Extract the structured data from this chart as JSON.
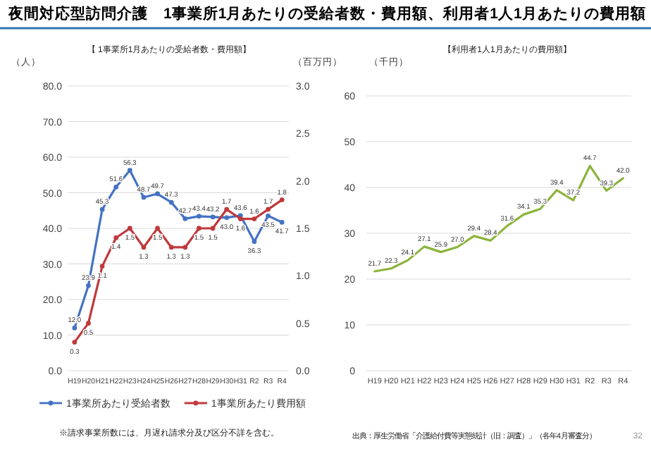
{
  "chart_data": [
    {
      "type": "line",
      "title": "夜間対応型訪問介護　1事業所1月あたりの受給者数・費用額、利用者1人1月あたりの費用額",
      "subtitle": "【 1事業所1月あたりの受給者数・費用額】",
      "ylabel": "（人）",
      "y2label": "（百万円）",
      "categories": [
        "H19",
        "H20",
        "H21",
        "H22",
        "H23",
        "H24",
        "H25",
        "H26",
        "H27",
        "H28",
        "H29",
        "H30",
        "H31",
        "R2",
        "R3",
        "R4"
      ],
      "series": [
        {
          "name": "1事業所あたり受給者数",
          "color": "#4472c4",
          "values": [
            12.0,
            23.9,
            45.3,
            51.6,
            56.3,
            48.7,
            49.7,
            47.3,
            42.7,
            43.4,
            43.2,
            43.0,
            43.6,
            36.3,
            43.5,
            41.7
          ],
          "value_labels": [
            "12.0",
            "23.9",
            "45.3",
            "51.6",
            "56.3",
            "48.7",
            "49.7",
            "47.3",
            "42.7",
            "43.4",
            "43.2",
            "43.0",
            "43.6",
            "36.3",
            "43.5",
            "41.7"
          ]
        },
        {
          "name": "1事業所あたり費用額",
          "color": "#c0393b",
          "axis": "y2",
          "values": [
            0.3,
            0.5,
            1.1,
            1.4,
            1.5,
            1.3,
            1.5,
            1.3,
            1.3,
            1.5,
            1.5,
            1.7,
            1.6,
            1.6,
            1.7,
            1.8
          ],
          "value_labels": [
            "0.3",
            "0.5",
            "1.1",
            "1.4",
            "1.5",
            "1.3",
            "1.5",
            "1.3",
            "1.3",
            "1.5",
            "1.5",
            "1.7",
            "1.6",
            "1.6",
            "1.7",
            "1.8"
          ]
        }
      ],
      "ylim": [
        0,
        80
      ],
      "yticks": [
        {
          "value": 0,
          "label": "0.0"
        },
        {
          "value": 10,
          "label": "10.0"
        },
        {
          "value": 20,
          "label": "20.0"
        },
        {
          "value": 30,
          "label": "30.0"
        },
        {
          "value": 40,
          "label": "40.0"
        },
        {
          "value": 50,
          "label": "50.0"
        },
        {
          "value": 60,
          "label": "60.0"
        },
        {
          "value": 70,
          "label": "70.0"
        },
        {
          "value": 80,
          "label": "80.0"
        }
      ],
      "y2lim": [
        0,
        3
      ],
      "y2ticks": [
        {
          "value": 0,
          "label": "0.0"
        },
        {
          "value": 0.5,
          "label": "0.5"
        },
        {
          "value": 1,
          "label": "1.0"
        },
        {
          "value": 1.5,
          "label": "1.5"
        },
        {
          "value": 2,
          "label": "2.0"
        },
        {
          "value": 2.5,
          "label": "2.5"
        },
        {
          "value": 3,
          "label": "3.0"
        }
      ],
      "grid": "y",
      "legend": "bottom",
      "marker": "circle",
      "annotations": [
        "※請求事業所数には、月遅れ請求分及び区分不詳を含む。"
      ]
    },
    {
      "type": "line",
      "title": "【利用者1人1月あたりの費用額】",
      "ylabel": "（千円）",
      "categories": [
        "H19",
        "H20",
        "H21",
        "H22",
        "H23",
        "H24",
        "H25",
        "H26",
        "H27",
        "H28",
        "H29",
        "H30",
        "H31",
        "R2",
        "R3",
        "R4"
      ],
      "series": [
        {
          "color": "#8cb43c",
          "values": [
            21.7,
            22.3,
            24.1,
            27.1,
            25.9,
            27.0,
            29.4,
            28.4,
            31.6,
            34.1,
            35.3,
            39.4,
            37.2,
            44.7,
            39.3,
            42.0
          ],
          "value_labels": [
            "21.7",
            "22.3",
            "24.1",
            "27.1",
            "25.9",
            "27.0",
            "29.4",
            "28.4",
            "31.6",
            "34.1",
            "35.3",
            "39.4",
            "37.2",
            "44.7",
            "39.3",
            "42.0"
          ]
        }
      ],
      "ylim": [
        0,
        60
      ],
      "yticks": [
        0,
        10,
        20,
        30,
        40,
        50,
        60
      ],
      "grid": "y",
      "annotations": [
        "出典：厚生労働省「介護給付費等実態統計（旧：調査）」（各年4月審査分）",
        "32"
      ]
    }
  ]
}
